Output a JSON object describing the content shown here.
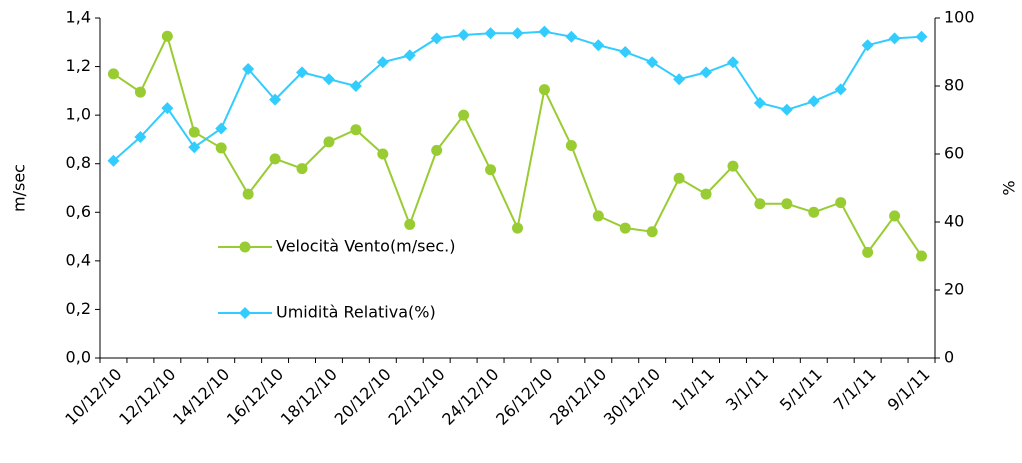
{
  "chart_data": {
    "type": "line",
    "categories": [
      "10/12/10",
      null,
      "12/12/10",
      null,
      "14/12/10",
      null,
      "16/12/10",
      null,
      "18/12/10",
      null,
      "20/12/10",
      null,
      "22/12/10",
      null,
      "24/12/10",
      null,
      "26/12/10",
      null,
      "28/12/10",
      null,
      "30/12/10",
      null,
      "1/1/11",
      null,
      "3/1/11",
      null,
      "5/1/11",
      null,
      "7/1/11",
      null,
      "9/1/11"
    ],
    "series": [
      {
        "name": "Velocità Vento(m/sec.)",
        "color": "#99cc33",
        "marker": "circle",
        "values": [
          1.17,
          1.095,
          1.325,
          0.93,
          0.865,
          0.675,
          0.82,
          0.78,
          0.89,
          0.94,
          0.84,
          0.55,
          0.855,
          1.0,
          0.775,
          0.535,
          1.105,
          0.875,
          0.585,
          0.535,
          0.52,
          0.74,
          0.675,
          0.79,
          0.635,
          0.635,
          0.6,
          0.64,
          0.435,
          0.585,
          0.42
        ]
      },
      {
        "name": "Umidità Relativa(%)",
        "color": "#33ccff",
        "marker": "diamond",
        "axis": "y2",
        "values": [
          58,
          65,
          73.5,
          62,
          67.5,
          85,
          76,
          84,
          82,
          80,
          87,
          89,
          94,
          95,
          95.5,
          95.5,
          96,
          94.5,
          92,
          90,
          87,
          82,
          84,
          87,
          75,
          73,
          75.5,
          79,
          92,
          94,
          94.5
        ]
      }
    ],
    "ylabel": "m/sec",
    "y2label": "%",
    "ylim": [
      0,
      1.4
    ],
    "yticks": [
      {
        "value": 0,
        "label": "0,0"
      },
      {
        "value": 0.2,
        "label": "0,2"
      },
      {
        "value": 0.4,
        "label": "0,4"
      },
      {
        "value": 0.6,
        "label": "0,6"
      },
      {
        "value": 0.8,
        "label": "0,8"
      },
      {
        "value": 1.0,
        "label": "1,0"
      },
      {
        "value": 1.2,
        "label": "1,2"
      },
      {
        "value": 1.4,
        "label": "1,4"
      }
    ],
    "y2lim": [
      0,
      100
    ],
    "y2ticks": [
      0,
      20,
      40,
      60,
      80,
      100
    ],
    "grid": false
  }
}
